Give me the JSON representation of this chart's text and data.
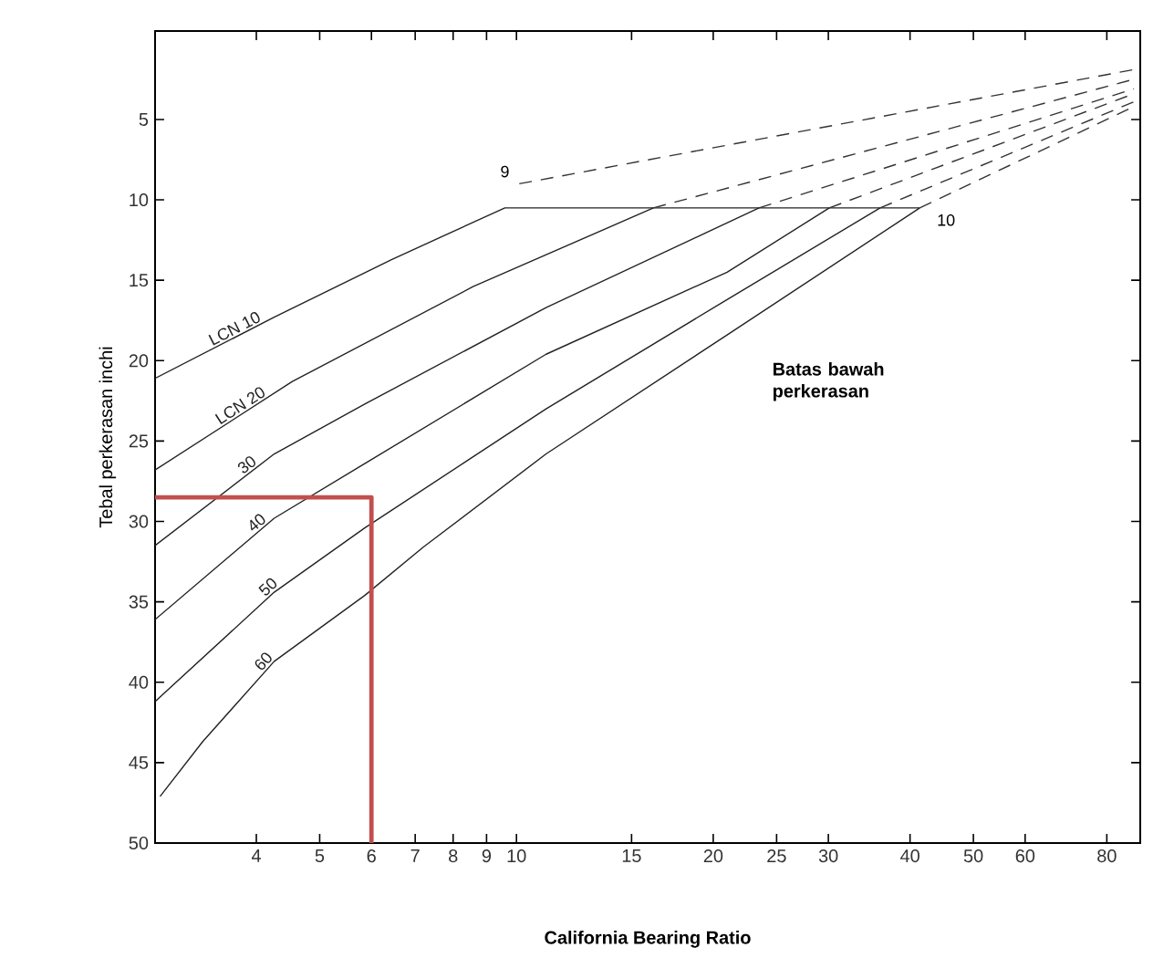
{
  "chart_data": {
    "type": "line",
    "xlabel": "California Bearing Ratio",
    "ylabel": "Tebal perkerasan inchi",
    "log": "x",
    "xlim": [
      2.8,
      90
    ],
    "ylim": [
      50,
      -0.5
    ],
    "xticks": [
      4,
      5,
      6,
      7,
      8,
      9,
      10,
      15,
      20,
      25,
      30,
      40,
      50,
      60,
      80
    ],
    "yticks": [
      5,
      10,
      15,
      20,
      25,
      30,
      35,
      40,
      45,
      50
    ],
    "grid": false,
    "marker": "none",
    "series": [
      {
        "name": "LCN 10",
        "color": "#222222",
        "line_style": "solid",
        "x": [
          2.8,
          4.26,
          6.45,
          9.6,
          41.4
        ],
        "values": [
          21.1,
          17.3,
          13.7,
          10.5,
          10.5
        ]
      },
      {
        "name": "LCN 20",
        "color": "#222222",
        "line_style": "solid",
        "x": [
          2.8,
          4.54,
          8.58,
          16.2
        ],
        "values": [
          26.8,
          21.3,
          15.4,
          10.5
        ]
      },
      {
        "name": "30",
        "color": "#222222",
        "line_style": "solid",
        "x": [
          2.8,
          4.26,
          5.86,
          11.1,
          23.5
        ],
        "values": [
          31.5,
          25.8,
          22.7,
          16.7,
          10.5
        ]
      },
      {
        "name": "40",
        "color": "#222222",
        "line_style": "solid",
        "x": [
          2.8,
          4.26,
          5.86,
          11.1,
          21.0,
          30.1
        ],
        "values": [
          36.1,
          29.8,
          26.4,
          19.6,
          14.5,
          10.5
        ]
      },
      {
        "name": "50",
        "color": "#222222",
        "line_style": "solid",
        "x": [
          2.8,
          4.26,
          5.86,
          11.1,
          21.0,
          36.0
        ],
        "values": [
          41.2,
          34.4,
          30.4,
          23.0,
          16.2,
          10.5
        ]
      },
      {
        "name": "60",
        "color": "#222222",
        "line_style": "solid",
        "x": [
          2.85,
          3.31,
          4.26,
          5.86,
          7.2,
          11.1,
          21.0,
          41.4
        ],
        "values": [
          47.1,
          43.7,
          38.7,
          34.6,
          31.6,
          25.8,
          18.4,
          10.5
        ]
      },
      {
        "color": "#333333",
        "line_style": "dashed",
        "x": [
          10.1,
          88
        ],
        "values": [
          9.0,
          1.9
        ]
      },
      {
        "color": "#333333",
        "line_style": "dashed",
        "x": [
          16.2,
          88
        ],
        "values": [
          10.5,
          2.5
        ]
      },
      {
        "color": "#333333",
        "line_style": "dashed",
        "x": [
          23.5,
          88
        ],
        "values": [
          10.5,
          3.1
        ]
      },
      {
        "color": "#333333",
        "line_style": "dashed",
        "x": [
          30.1,
          88
        ],
        "values": [
          10.5,
          3.4
        ]
      },
      {
        "color": "#333333",
        "line_style": "dashed",
        "x": [
          36.0,
          88
        ],
        "values": [
          10.5,
          3.9
        ]
      },
      {
        "color": "#333333",
        "line_style": "dashed",
        "x": [
          41.4,
          88
        ],
        "values": [
          10.5,
          4.2
        ]
      },
      {
        "color": "#c0504d",
        "line_style": "solid",
        "x": [
          2.8,
          6,
          6
        ],
        "values": [
          28.5,
          28.5,
          50
        ]
      }
    ],
    "annotations": [
      "9",
      "10",
      "Batas bawah perkerasan"
    ]
  }
}
